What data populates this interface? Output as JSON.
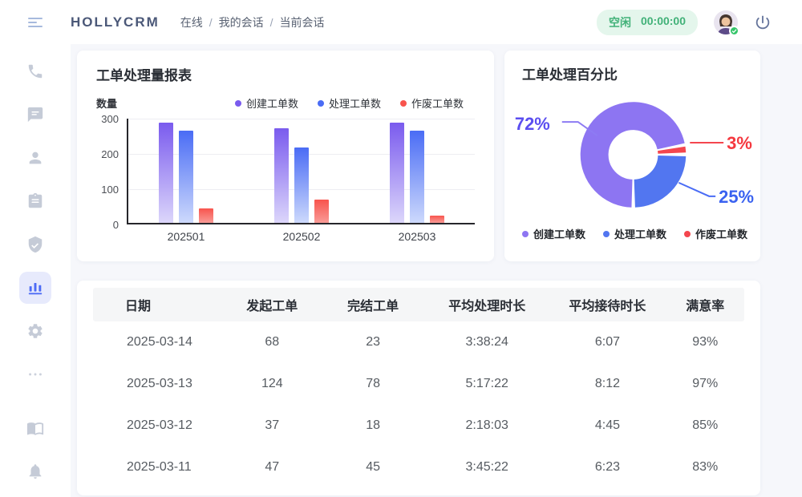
{
  "header": {
    "logo": "HOLLYCRM",
    "breadcrumb": {
      "items": [
        "在线",
        "我的会话",
        "当前会话"
      ],
      "separator": "/"
    },
    "status_badge": {
      "label": "空闲",
      "timer": "00:00:00"
    }
  },
  "sidebar": {
    "icons": [
      "phone",
      "chat",
      "contacts",
      "tasks",
      "security",
      "reports",
      "settings",
      "more",
      "knowledge-book",
      "notification-bell"
    ],
    "active": "reports"
  },
  "cards": {
    "bar_chart": {
      "title": "工单处理量报表"
    },
    "donut": {
      "title": "工单处理百分比"
    }
  },
  "chart_data": [
    {
      "type": "bar",
      "title": "工单处理量报表",
      "ylabel": "数量",
      "categories": [
        "202501",
        "202502",
        "202503"
      ],
      "series": [
        {
          "name": "创建工单数",
          "color_top": "#7a5bee",
          "color_bottom": "#dcd6fb",
          "values": [
            285,
            268,
            283
          ]
        },
        {
          "name": "处理工单数",
          "color_top": "#4a6cf5",
          "color_bottom": "#cdd9fc",
          "values": [
            262,
            214,
            262
          ]
        },
        {
          "name": "作废工单数",
          "color_top": "#f8544d",
          "color_bottom": "#f99b97",
          "values": [
            42,
            65,
            20
          ]
        }
      ],
      "ylim": [
        0,
        300
      ],
      "yticks": [
        0,
        100,
        200,
        300
      ],
      "grid": true,
      "legend_position": "top"
    },
    {
      "type": "pie",
      "title": "工单处理百分比",
      "labels": [
        "创建工单数",
        "处理工单数",
        "作废工单数"
      ],
      "values": [
        72,
        25,
        3
      ],
      "unit": "%",
      "colors": [
        "#8d75f2",
        "#5276f0",
        "#f4464e"
      ],
      "label_colors": [
        "#5b4ef0",
        "#3a62f0",
        "#f5383f"
      ],
      "donut": true,
      "legend_position": "bottom"
    }
  ],
  "table": {
    "headers": [
      "日期",
      "发起工单",
      "完结工单",
      "平均处理时长",
      "平均接待时长",
      "满意率"
    ],
    "rows": [
      [
        "2025-03-14",
        "68",
        "23",
        "3:38:24",
        "6:07",
        "93%"
      ],
      [
        "2025-03-13",
        "124",
        "78",
        "5:17:22",
        "8:12",
        "97%"
      ],
      [
        "2025-03-12",
        "37",
        "18",
        "2:18:03",
        "4:45",
        "85%"
      ],
      [
        "2025-03-11",
        "47",
        "45",
        "3:45:22",
        "6:23",
        "83%"
      ]
    ]
  }
}
